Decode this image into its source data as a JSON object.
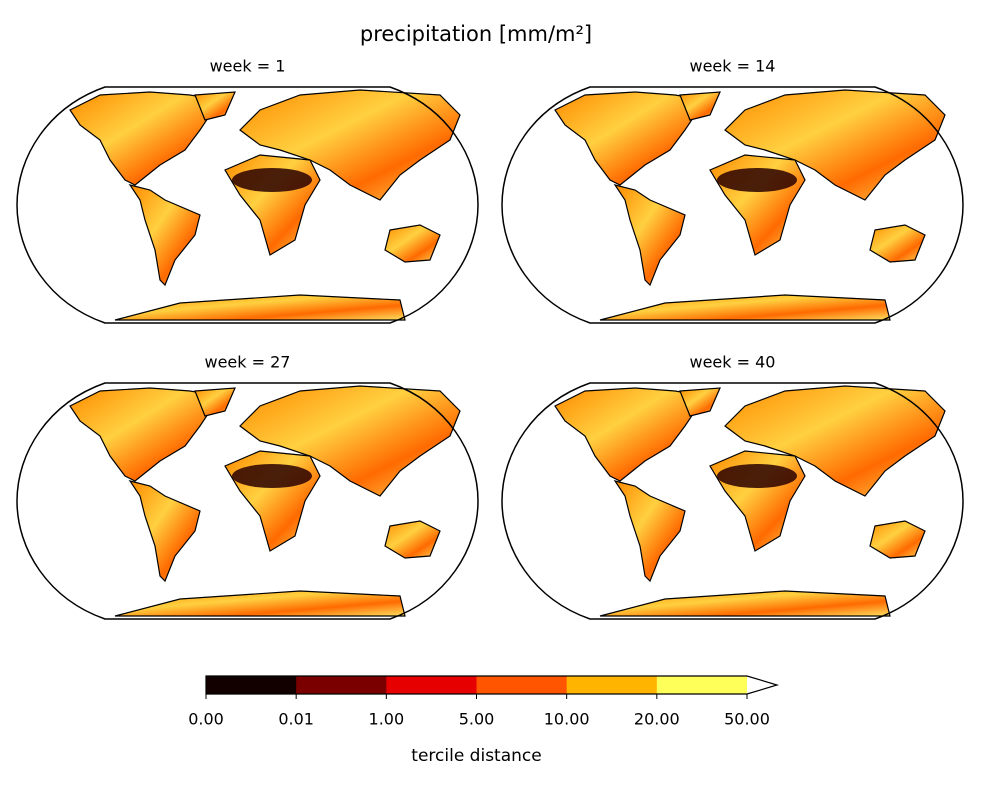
{
  "chart_data": {
    "type": "map",
    "title": "precipitation [mm/m²]",
    "panels": [
      "week = 1",
      "week = 14",
      "week = 27",
      "week = 40"
    ],
    "colorbar": {
      "label": "tercile distance",
      "colors": [
        "#120000",
        "#7a0000",
        "#e60000",
        "#ff5500",
        "#ffb400",
        "#ffff5a"
      ],
      "extend_color": "#ffffff",
      "ticks": [
        {
          "value": 0,
          "label": "0.00"
        },
        {
          "value": 0.01,
          "label": "0.01"
        },
        {
          "value": 1,
          "label": "1.00"
        },
        {
          "value": 5,
          "label": "5.00"
        },
        {
          "value": 10,
          "label": "10.00"
        },
        {
          "value": 20,
          "label": "20.00"
        },
        {
          "value": 50,
          "label": "50.00"
        }
      ]
    }
  }
}
